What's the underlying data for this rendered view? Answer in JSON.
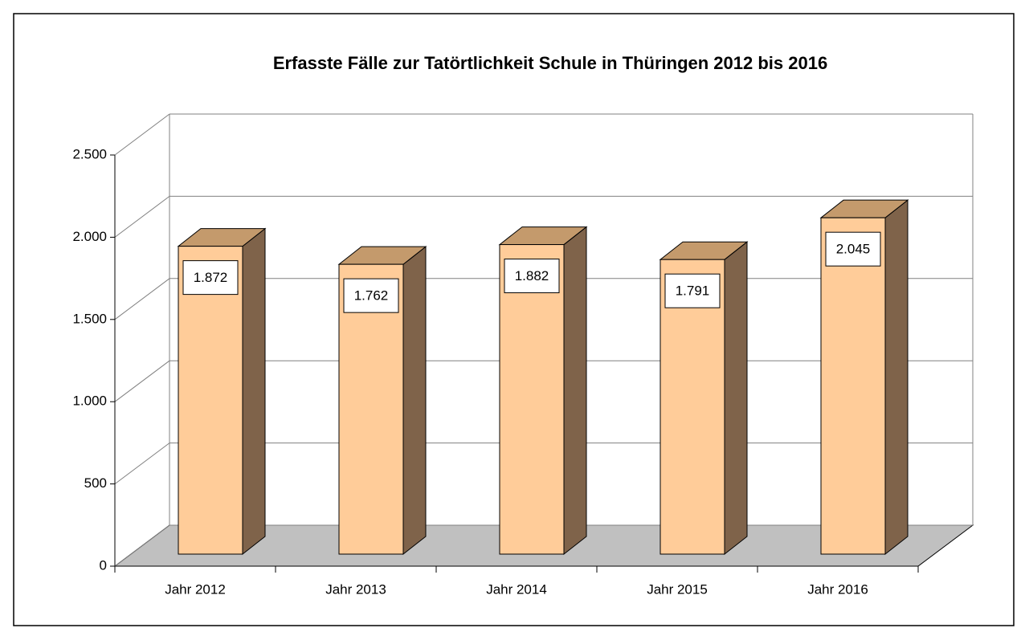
{
  "chart_data": {
    "type": "bar3d",
    "title": "Erfasste Fälle zur Tatörtlichkeit Schule in Thüringen 2012 bis 2016",
    "categories": [
      "Jahr 2012",
      "Jahr 2013",
      "Jahr 2014",
      "Jahr 2015",
      "Jahr 2016"
    ],
    "values": [
      1872,
      1762,
      1882,
      1791,
      2045
    ],
    "value_labels": [
      "1.872",
      "1.762",
      "1.882",
      "1.791",
      "2.045"
    ],
    "color": "#ffcc99",
    "ylim": [
      0,
      2500
    ],
    "yticks": [
      0,
      {
        "value": 500,
        "label": "500"
      },
      {
        "value": 1000,
        "label": "1.000"
      },
      {
        "value": 1500,
        "label": "1.500"
      },
      {
        "value": 2000,
        "label": "2.000"
      },
      {
        "value": 2500,
        "label": "2.500"
      }
    ],
    "grid": true
  }
}
